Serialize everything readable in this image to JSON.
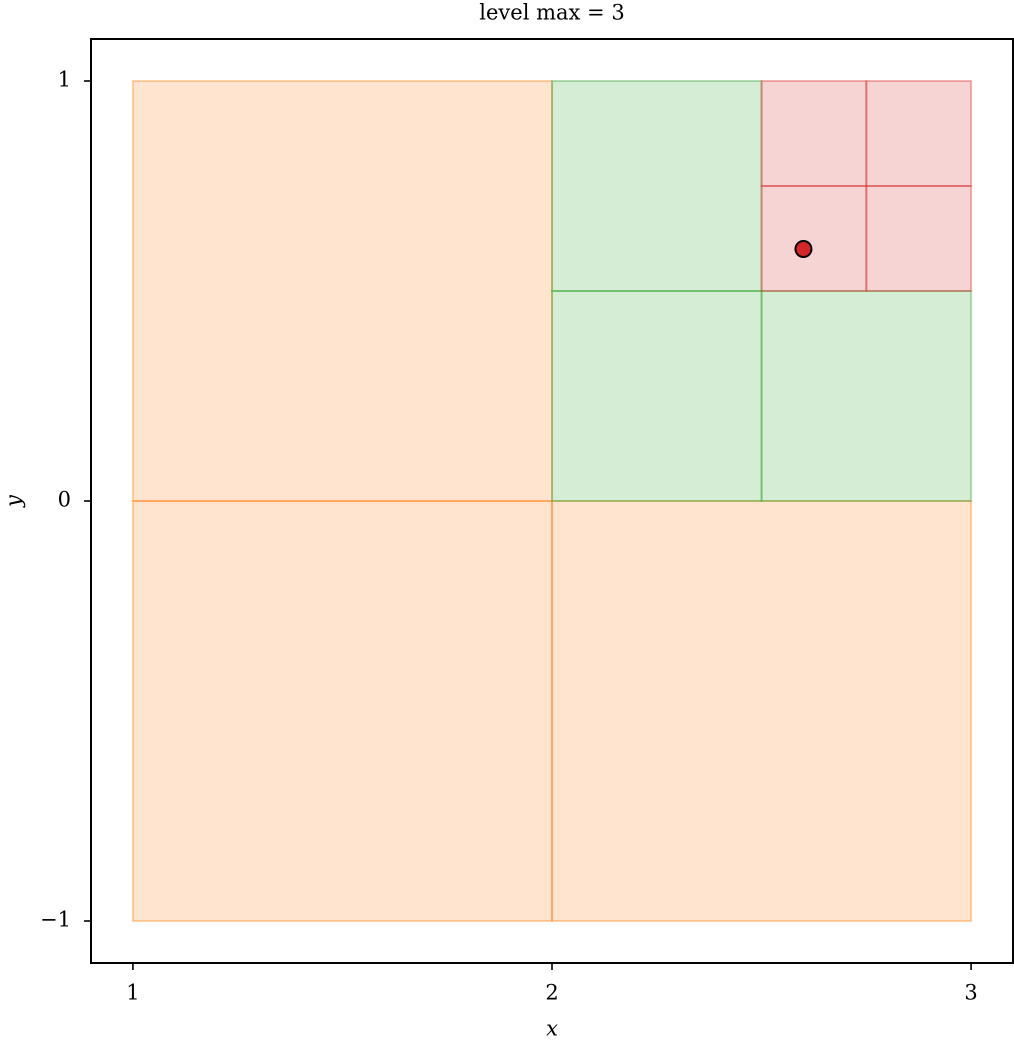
{
  "chart_data": {
    "type": "quadtree",
    "title": "level max = 3",
    "x_label": "x",
    "y_label": "y",
    "xlim": [
      0.9,
      3.1
    ],
    "ylim": [
      -1.1,
      1.1
    ],
    "xticks": [
      1,
      2,
      3
    ],
    "yticks": [
      {
        "value": -1,
        "label": "−1"
      },
      0,
      1
    ],
    "levels": [
      {
        "color": "#ff7f0e",
        "cells": [
          [
            1,
            2,
            0,
            1
          ],
          [
            1,
            2,
            -1,
            0
          ],
          [
            2,
            3,
            -1,
            0
          ]
        ]
      },
      {
        "color": "#2ca02c",
        "cells": [
          [
            2,
            2.5,
            0.5,
            1
          ],
          [
            2,
            2.5,
            0,
            0.5
          ],
          [
            2.5,
            3,
            0,
            0.5
          ]
        ]
      },
      {
        "color": "#d62728",
        "cells": [
          [
            2.5,
            2.75,
            0.75,
            1
          ],
          [
            2.75,
            3,
            0.75,
            1
          ],
          [
            2.5,
            2.75,
            0.5,
            0.75
          ],
          [
            2.75,
            3,
            0.5,
            0.75
          ]
        ]
      }
    ],
    "points": {
      "color": "#d62728",
      "x": [
        2.6
      ],
      "y": [
        0.6
      ]
    }
  }
}
